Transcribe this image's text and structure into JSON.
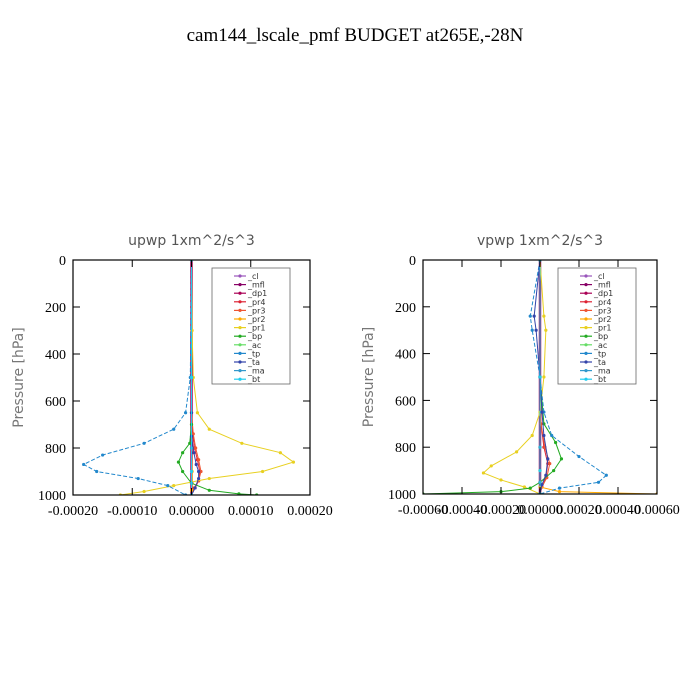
{
  "figure": {
    "title": "cam144_lscale_pmf  BUDGET at265E,-28N"
  },
  "chart_data": [
    {
      "type": "line",
      "title": "upwp   1xm^2/s^3",
      "ylabel": "Pressure [hPa]",
      "xlabel": "",
      "ylim": [
        1000,
        0
      ],
      "xlim": [
        -0.0002,
        0.0002
      ],
      "yticks": [
        0,
        200,
        400,
        600,
        800,
        1000
      ],
      "yticklabels": [
        "0",
        "200",
        "400",
        "600",
        "800",
        "1000"
      ],
      "xticks": [
        -0.0002,
        -0.0001,
        0,
        0.0001,
        0.0002
      ],
      "xticklabels": [
        "-0.00020",
        "-0.00010",
        "0.00000",
        "0.00010",
        "0.00020"
      ],
      "legend_position": "top-right",
      "series": [
        {
          "name": "_cl",
          "color": "#9955bb",
          "x": [
            0,
            0
          ],
          "y": [
            0,
            1000
          ]
        },
        {
          "name": "_mfl",
          "color": "#880066",
          "x": [
            0,
            0
          ],
          "y": [
            0,
            1000
          ]
        },
        {
          "name": "_dp1",
          "color": "#aa0055",
          "x": [
            0,
            0
          ],
          "y": [
            0,
            1000
          ]
        },
        {
          "name": "_pr4",
          "color": "#dd2233",
          "x": [
            0,
            0,
            0,
            2e-06,
            5e-06,
            1e-05,
            1.4e-05,
            1.2e-05,
            6e-06,
            0
          ],
          "y": [
            0,
            500,
            650,
            740,
            800,
            850,
            900,
            940,
            970,
            1000
          ]
        },
        {
          "name": "_pr3",
          "color": "#ee5533",
          "x": [
            0,
            0,
            0,
            3e-06,
            7e-06,
            1.2e-05,
            1.6e-05,
            1.2e-05,
            4e-06,
            0
          ],
          "y": [
            0,
            500,
            650,
            740,
            800,
            850,
            900,
            940,
            970,
            1000
          ]
        },
        {
          "name": "_pr2",
          "color": "#ffaa00",
          "x": [
            0,
            0,
            0,
            0,
            1e-06,
            1e-06,
            0,
            0
          ],
          "y": [
            0,
            500,
            700,
            800,
            900,
            950,
            980,
            1000
          ]
        },
        {
          "name": "_pr1",
          "color": "#e8d020",
          "x": [
            0,
            1e-06,
            3e-06,
            1e-05,
            3e-05,
            8.5e-05,
            0.00015,
            0.000172,
            0.00012,
            3e-05,
            -3e-05,
            -8e-05,
            -0.00012
          ],
          "y": [
            0,
            300,
            500,
            650,
            720,
            780,
            820,
            860,
            900,
            930,
            960,
            985,
            1000
          ]
        },
        {
          "name": "_bp",
          "color": "#22aa22",
          "x": [
            0,
            0,
            0,
            -3e-06,
            -1.5e-05,
            -2.2e-05,
            -1.5e-05,
            0,
            3e-05,
            8e-05,
            0.00011
          ],
          "y": [
            0,
            500,
            700,
            780,
            820,
            860,
            900,
            950,
            980,
            995,
            1000
          ]
        },
        {
          "name": "_ac",
          "color": "#66dd66",
          "x": [
            0,
            0,
            0,
            0,
            0
          ],
          "y": [
            0,
            500,
            800,
            950,
            1000
          ]
        },
        {
          "name": "_tp",
          "color": "#2288cc",
          "x": [
            0,
            -2e-06,
            -1e-05,
            -3e-05,
            -8e-05,
            -0.00015,
            -0.000182,
            -0.00016,
            -9e-05,
            -4e-05,
            -1e-05
          ],
          "y": [
            0,
            500,
            650,
            720,
            780,
            830,
            870,
            900,
            930,
            960,
            1000
          ]
        },
        {
          "name": "_ta",
          "color": "#3344aa",
          "x": [
            0,
            0,
            0,
            0,
            4e-06,
            8e-06,
            1.2e-05,
            1.2e-05,
            6e-06,
            0
          ],
          "y": [
            0,
            500,
            650,
            750,
            820,
            870,
            900,
            930,
            970,
            1000
          ]
        },
        {
          "name": "_ma",
          "color": "#3399cc",
          "x": [
            0,
            0,
            0,
            0,
            0
          ],
          "y": [
            0,
            500,
            800,
            950,
            1000
          ]
        },
        {
          "name": "_bt",
          "color": "#22ccee",
          "x": [
            0,
            0,
            0,
            0
          ],
          "y": [
            0,
            500,
            900,
            1000
          ]
        }
      ]
    },
    {
      "type": "line",
      "title": "vpwp   1xm^2/s^3",
      "ylabel": "Pressure [hPa]",
      "xlabel": "",
      "ylim": [
        1000,
        0
      ],
      "xlim": [
        -0.0006,
        0.0006
      ],
      "yticks": [
        0,
        200,
        400,
        600,
        800,
        1000
      ],
      "yticklabels": [
        "0",
        "200",
        "400",
        "600",
        "800",
        "1000"
      ],
      "xticks": [
        -0.0006,
        -0.0004,
        -0.0002,
        0,
        0.0002,
        0.0004,
        0.0006
      ],
      "xticklabels": [
        "-0.00060",
        "-0.00040",
        "-0.00020",
        "0.00000",
        "0.00020",
        "0.00040",
        "0.00060"
      ],
      "legend_position": "top-right",
      "series": [
        {
          "name": "_cl",
          "color": "#9955bb",
          "x": [
            0,
            0
          ],
          "y": [
            0,
            1000
          ]
        },
        {
          "name": "_mfl",
          "color": "#880066",
          "x": [
            0,
            0
          ],
          "y": [
            0,
            1000
          ]
        },
        {
          "name": "_dp1",
          "color": "#aa0055",
          "x": [
            0,
            0
          ],
          "y": [
            0,
            1000
          ]
        },
        {
          "name": "_pr4",
          "color": "#dd2233",
          "x": [
            0,
            0,
            5e-06,
            2e-05,
            4e-05,
            3e-05,
            1e-05,
            0
          ],
          "y": [
            0,
            500,
            700,
            800,
            870,
            930,
            970,
            1000
          ]
        },
        {
          "name": "_pr3",
          "color": "#ee5533",
          "x": [
            0,
            0,
            5e-06,
            2.5e-05,
            5e-05,
            3.5e-05,
            1e-05,
            0
          ],
          "y": [
            0,
            500,
            700,
            800,
            870,
            930,
            970,
            1000
          ]
        },
        {
          "name": "_pr2",
          "color": "#ffaa00",
          "x": [
            0,
            0,
            0,
            0,
            0.0001,
            0.0006
          ],
          "y": [
            0,
            500,
            900,
            970,
            990,
            1000
          ]
        },
        {
          "name": "_pr1",
          "color": "#e8d020",
          "x": [
            0,
            2e-05,
            3e-05,
            2e-05,
            0,
            -4e-05,
            -0.00012,
            -0.00025,
            -0.00029,
            -0.0002,
            -8e-05,
            0
          ],
          "y": [
            0,
            240,
            300,
            500,
            650,
            750,
            820,
            880,
            910,
            940,
            970,
            1000
          ]
        },
        {
          "name": "_bp",
          "color": "#22aa22",
          "x": [
            0,
            0,
            2e-05,
            8e-05,
            0.00011,
            7e-05,
            0,
            -5e-05,
            -0.0002,
            -0.0006
          ],
          "y": [
            0,
            500,
            700,
            780,
            850,
            900,
            950,
            975,
            990,
            1000
          ]
        },
        {
          "name": "_ac",
          "color": "#66dd66",
          "x": [
            0,
            0,
            0,
            0,
            0
          ],
          "y": [
            0,
            500,
            800,
            950,
            1000
          ]
        },
        {
          "name": "_tp",
          "color": "#2288cc",
          "x": [
            0,
            -5e-05,
            -4e-05,
            0,
            2e-05,
            6e-05,
            0.0002,
            0.00034,
            0.0003,
            0.0001,
            0
          ],
          "y": [
            0,
            240,
            300,
            500,
            650,
            750,
            840,
            920,
            950,
            975,
            1000
          ]
        },
        {
          "name": "_ta",
          "color": "#3344aa",
          "x": [
            0,
            -3e-05,
            -2e-05,
            0,
            1e-05,
            2e-05,
            4e-05,
            3e-05,
            1e-05,
            0
          ],
          "y": [
            0,
            240,
            300,
            500,
            650,
            750,
            850,
            920,
            960,
            1000
          ]
        },
        {
          "name": "_ma",
          "color": "#3399cc",
          "x": [
            0,
            0,
            0,
            0,
            0
          ],
          "y": [
            0,
            500,
            800,
            950,
            1000
          ]
        },
        {
          "name": "_bt",
          "color": "#22ccee",
          "x": [
            0,
            0,
            0,
            0
          ],
          "y": [
            0,
            500,
            900,
            1000
          ]
        }
      ]
    }
  ]
}
